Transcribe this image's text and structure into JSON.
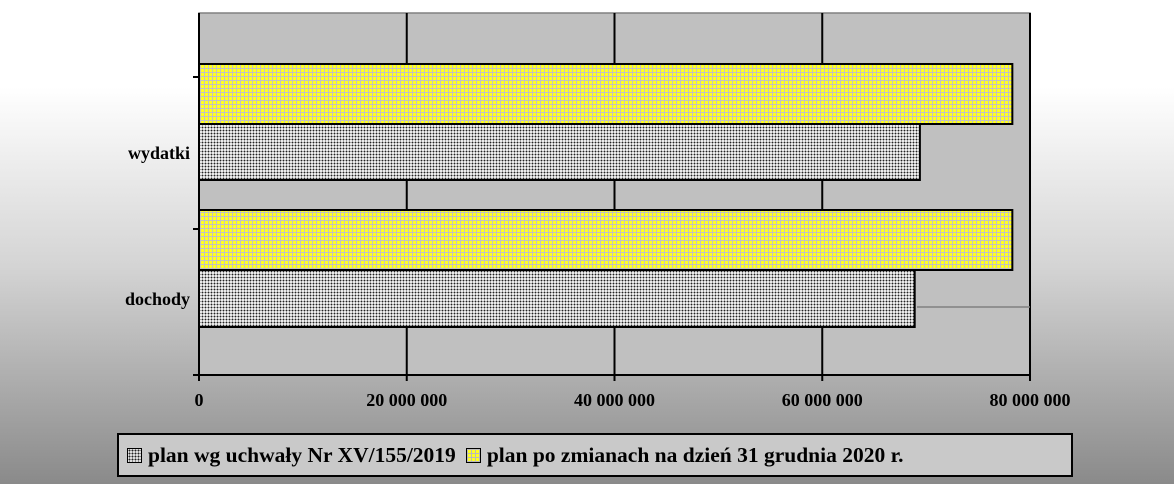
{
  "chart_data": {
    "type": "bar",
    "orientation": "horizontal",
    "categories": [
      "wydatki",
      "dochody"
    ],
    "series": [
      {
        "name": "plan po zmianach na dzień 31 grudnia 2020 r.",
        "values": [
          78300000,
          78300000
        ]
      },
      {
        "name": "plan wg uchwały Nr XV/155/2019",
        "values": [
          69400000,
          68900000
        ]
      }
    ],
    "xlim": [
      0,
      80000000
    ],
    "x_ticks": [
      "0",
      "20 000 000",
      "40 000 000",
      "60 000 000",
      "80 000 000"
    ],
    "grid": true,
    "legend": "bottom",
    "title": "",
    "xlabel": "",
    "ylabel": "",
    "colors": {
      "plan_po_zmianach": "#ffff00",
      "plan_wg_uchwaly": "#b0b0b0",
      "plot_bg": "#c0c0c0"
    }
  },
  "legend": {
    "items": [
      {
        "label": "plan wg uchwały Nr XV/155/2019"
      },
      {
        "label": "plan po zmianach na dzień 31 grudnia 2020 r."
      }
    ]
  }
}
